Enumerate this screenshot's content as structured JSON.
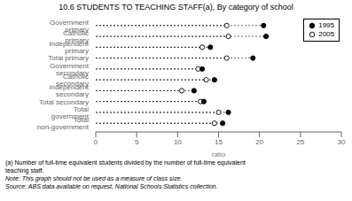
{
  "chart_data": {
    "type": "dot",
    "title": "10.6  STUDENTS TO TEACHING STAFF(a), By category of school",
    "categories": [
      "Government primary",
      "Catholic primary",
      "Independent primary",
      "Total primary",
      "Government secondary",
      "Catholic secondary",
      "Independent secondary",
      "Total secondary",
      "Total government",
      "Total non-government"
    ],
    "series": [
      {
        "name": "1995",
        "color": "#000000",
        "marker": "circle",
        "values": [
          20.5,
          20.8,
          14.0,
          19.2,
          13.0,
          14.5,
          12.0,
          13.2,
          16.2,
          15.5
        ]
      },
      {
        "name": "2005",
        "color": "#ffffff",
        "marker": "circle",
        "values": [
          16.0,
          16.2,
          13.0,
          16.0,
          12.5,
          13.5,
          10.5,
          12.8,
          15.0,
          14.5
        ]
      }
    ],
    "xlabel": "ratio",
    "xlim": [
      0,
      30
    ],
    "xticks": [
      0,
      5,
      10,
      15,
      20,
      25,
      30
    ],
    "grid": false,
    "legend": "upper right",
    "annotations": [
      "(a) Number of full-time equivalent students divided by the number of full-time equivalent",
      "teaching staff.",
      "Note: This graph should not be used as a measure of class size.",
      "Source: ABS data available on request, National Schools Statistics collection."
    ]
  }
}
